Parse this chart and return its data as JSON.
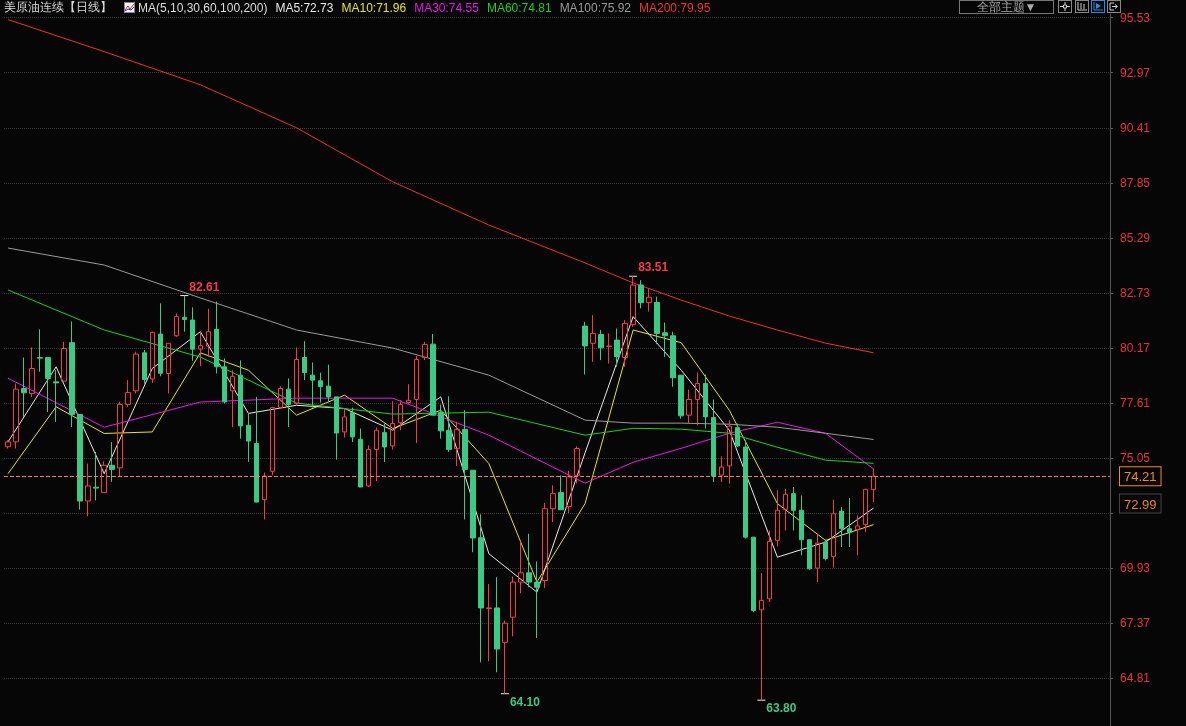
{
  "chart_data": {
    "type": "candlestick",
    "title": "美原油连续【日线】",
    "legend_title": "MA(5,10,30,60,100,200)",
    "categories": [
      null,
      null,
      null,
      null,
      null,
      null,
      null,
      null,
      null,
      null,
      null,
      null,
      null,
      null,
      null,
      null,
      null,
      null,
      null,
      null,
      null,
      null,
      null,
      null,
      null,
      null,
      null,
      null,
      null,
      null,
      null,
      null,
      null,
      null,
      null,
      null,
      null,
      null,
      null,
      null,
      null,
      null,
      null,
      null,
      null,
      null,
      null,
      null,
      null,
      null,
      null,
      null,
      null,
      null,
      null,
      null,
      null,
      null,
      null,
      null,
      null,
      null,
      null,
      null,
      null,
      null,
      null,
      null,
      null,
      null,
      null,
      null,
      null,
      null,
      null,
      null,
      null,
      null,
      null,
      null,
      null,
      null,
      null,
      null,
      null,
      null,
      null,
      null,
      null,
      null,
      null,
      null,
      null,
      null,
      null,
      null,
      null,
      null,
      null,
      null,
      null,
      null,
      null,
      null,
      null,
      null,
      null,
      null,
      null,
      null,
      null,
      null,
      null,
      null,
      null,
      null,
      null,
      null,
      null,
      null,
      null,
      null,
      null,
      null,
      null,
      null,
      null,
      null,
      null,
      null,
      null,
      null,
      null,
      null,
      null,
      null,
      null,
      null
    ],
    "ohlc": [
      [
        75.58,
        75.89,
        75.5,
        75.81
      ],
      [
        75.81,
        78.52,
        75.5,
        78.26
      ],
      [
        78.29,
        79.73,
        76.97,
        78.09
      ],
      [
        78.06,
        80.2,
        77.9,
        79.22
      ],
      [
        79.73,
        81.04,
        79.07,
        79.7
      ],
      [
        79.73,
        79.73,
        77.2,
        78.76
      ],
      [
        78.6,
        79.14,
        76.74,
        78.55
      ],
      [
        78.63,
        80.46,
        78.6,
        80.15
      ],
      [
        80.42,
        81.4,
        76.5,
        77.08
      ],
      [
        77.08,
        77.08,
        72.66,
        73.06
      ],
      [
        73.06,
        74.8,
        72.35,
        73.76
      ],
      [
        73.7,
        75.34,
        73.09,
        73.66
      ],
      [
        73.45,
        74.9,
        73.45,
        74.72
      ],
      [
        74.72,
        75.8,
        73.95,
        74.53
      ],
      [
        74.6,
        77.67,
        74.21,
        77.55
      ],
      [
        77.55,
        78.68,
        77.44,
        78.1
      ],
      [
        78.18,
        80.0,
        78.06,
        79.89
      ],
      [
        79.95,
        80.08,
        78.52,
        78.71
      ],
      [
        78.73,
        80.93,
        78.55,
        80.9
      ],
      [
        80.82,
        82.25,
        78.86,
        79.0
      ],
      [
        78.99,
        80.39,
        78.06,
        80.39
      ],
      [
        80.74,
        81.78,
        80.7,
        81.63
      ],
      [
        81.6,
        82.61,
        80.93,
        81.5
      ],
      [
        81.47,
        82.06,
        79.58,
        80.12
      ],
      [
        80.12,
        80.93,
        79.33,
        80.28
      ],
      [
        80.26,
        82.0,
        79.77,
        80.93
      ],
      [
        81.04,
        82.33,
        78.99,
        79.3
      ],
      [
        79.3,
        79.69,
        77.6,
        77.67
      ],
      [
        78.18,
        79.14,
        76.5,
        78.86
      ],
      [
        78.91,
        79.6,
        75.96,
        76.55
      ],
      [
        76.58,
        77.13,
        74.88,
        75.85
      ],
      [
        75.73,
        77.9,
        73.0,
        73.01
      ],
      [
        73.12,
        74.38,
        72.2,
        74.22
      ],
      [
        74.44,
        77.44,
        74.26,
        77.4
      ],
      [
        77.4,
        78.4,
        77.33,
        78.29
      ],
      [
        78.26,
        78.76,
        76.5,
        77.55
      ],
      [
        77.6,
        80.2,
        77.5,
        79.64
      ],
      [
        79.73,
        80.49,
        78.68,
        79.03
      ],
      [
        78.91,
        79.5,
        77.4,
        78.68
      ],
      [
        78.65,
        79.03,
        77.64,
        78.37
      ],
      [
        78.4,
        79.4,
        77.67,
        77.9
      ],
      [
        77.9,
        77.9,
        74.98,
        76.22
      ],
      [
        76.27,
        77.36,
        76.01,
        76.97
      ],
      [
        77.17,
        77.4,
        75.8,
        76.04
      ],
      [
        75.93,
        76.43,
        73.71,
        73.71
      ],
      [
        73.76,
        75.65,
        73.71,
        75.45
      ],
      [
        75.45,
        76.47,
        73.99,
        76.35
      ],
      [
        76.24,
        76.66,
        74.87,
        75.57
      ],
      [
        75.62,
        77.7,
        75.45,
        76.66
      ],
      [
        76.7,
        77.74,
        76.35,
        77.54
      ],
      [
        77.64,
        78.49,
        77.59,
        77.74
      ],
      [
        77.78,
        79.8,
        75.76,
        79.64
      ],
      [
        79.73,
        80.46,
        79.61,
        80.34
      ],
      [
        80.35,
        80.82,
        77.05,
        77.05
      ],
      [
        77.17,
        77.54,
        75.96,
        76.32
      ],
      [
        76.35,
        77.93,
        75.34,
        75.46
      ],
      [
        75.49,
        76.74,
        74.69,
        76.39
      ],
      [
        76.39,
        77.28,
        72.2,
        74.53
      ],
      [
        74.49,
        74.49,
        70.68,
        71.34
      ],
      [
        71.35,
        72.44,
        65.56,
        68.09
      ],
      [
        68.06,
        69.2,
        65.61,
        68.09
      ],
      [
        68.09,
        69.52,
        65.1,
        66.18
      ],
      [
        66.49,
        67.5,
        64.1,
        67.38
      ],
      [
        67.66,
        69.55,
        66.77,
        69.29
      ],
      [
        69.29,
        71.18,
        68.77,
        69.72
      ],
      [
        69.72,
        71.54,
        69.05,
        69.29
      ],
      [
        69.29,
        70.25,
        66.69,
        69.05
      ],
      [
        69.36,
        72.97,
        69.02,
        72.7
      ],
      [
        72.7,
        73.79,
        72.08,
        73.4
      ],
      [
        73.45,
        74.25,
        72.65,
        72.65
      ],
      [
        72.81,
        74.46,
        72.5,
        74.18
      ],
      [
        74.25,
        75.6,
        73.87,
        75.5
      ],
      [
        81.19,
        81.39,
        78.94,
        80.27
      ],
      [
        80.39,
        81.7,
        79.53,
        80.85
      ],
      [
        80.8,
        81.01,
        79.61,
        80.18
      ],
      [
        80.25,
        80.85,
        79.45,
        80.26
      ],
      [
        80.54,
        81.08,
        79.3,
        79.77
      ],
      [
        79.73,
        81.47,
        79.3,
        81.32
      ],
      [
        81.27,
        83.51,
        81.16,
        83.1
      ],
      [
        83.1,
        83.33,
        82.02,
        82.28
      ],
      [
        82.29,
        82.95,
        81.86,
        82.53
      ],
      [
        82.29,
        82.56,
        80.35,
        80.85
      ],
      [
        80.88,
        81.36,
        79.76,
        80.74
      ],
      [
        80.74,
        80.93,
        78.37,
        78.79
      ],
      [
        78.91,
        78.91,
        76.89,
        77.02
      ],
      [
        77.05,
        78.24,
        76.66,
        77.78
      ],
      [
        77.78,
        79.04,
        76.58,
        78.52
      ],
      [
        78.52,
        78.94,
        76.43,
        76.97
      ],
      [
        76.94,
        77.78,
        73.94,
        74.22
      ],
      [
        74.26,
        75.14,
        73.95,
        74.64
      ],
      [
        74.69,
        76.82,
        73.87,
        76.54
      ],
      [
        76.47,
        76.66,
        75.57,
        75.62
      ],
      [
        75.57,
        75.88,
        71.31,
        71.38
      ],
      [
        71.38,
        71.38,
        67.89,
        67.97
      ],
      [
        68.0,
        69.71,
        63.8,
        68.44
      ],
      [
        68.51,
        71.69,
        68.36,
        71.18
      ],
      [
        71.23,
        73.56,
        70.95,
        72.63
      ],
      [
        72.67,
        73.63,
        71.69,
        73.37
      ],
      [
        73.4,
        73.71,
        71.69,
        72.63
      ],
      [
        72.63,
        73.32,
        70.53,
        71.26
      ],
      [
        71.26,
        71.26,
        69.86,
        69.91
      ],
      [
        69.94,
        71.54,
        69.29,
        71.1
      ],
      [
        71.15,
        71.26,
        70.3,
        70.38
      ],
      [
        70.48,
        73.12,
        69.96,
        72.47
      ],
      [
        72.59,
        72.78,
        70.92,
        71.77
      ],
      [
        71.77,
        73.2,
        70.92,
        71.59
      ],
      [
        71.73,
        72.39,
        70.53,
        71.9
      ],
      [
        71.96,
        73.63,
        71.62,
        73.6
      ],
      [
        73.59,
        74.57,
        73.01,
        74.21
      ],
      null,
      null,
      null,
      null,
      null,
      null,
      null,
      null,
      null,
      null,
      null,
      null,
      null,
      null,
      null,
      null,
      null,
      null,
      null,
      null,
      null,
      null,
      null,
      null,
      null,
      null,
      null,
      null,
      null
    ],
    "colors": [
      "#f23c4a",
      "#f23c4a",
      "#3cc985",
      "#f23c4a",
      "#3cc985",
      "#3cc985",
      "#3cc985",
      "#f23c4a",
      "#3cc985",
      "#3cc985",
      "#f23c4a",
      "#3cc985",
      "#f23c4a",
      "#3cc985",
      "#f23c4a",
      "#f23c4a",
      "#f23c4a",
      "#3cc985",
      "#f23c4a",
      "#3cc985",
      "#f23c4a",
      "#f23c4a",
      "#3cc985",
      "#3cc985",
      "#f23c4a",
      "#f23c4a",
      "#3cc985",
      "#3cc985",
      "#f23c4a",
      "#3cc985",
      "#3cc985",
      "#3cc985",
      "#f23c4a",
      "#f23c4a",
      "#f23c4a",
      "#3cc985",
      "#f23c4a",
      "#3cc985",
      "#3cc985",
      "#3cc985",
      "#3cc985",
      "#3cc985",
      "#f23c4a",
      "#3cc985",
      "#3cc985",
      "#f23c4a",
      "#f23c4a",
      "#3cc985",
      "#f23c4a",
      "#f23c4a",
      "#f23c4a",
      "#f23c4a",
      "#f23c4a",
      "#3cc985",
      "#3cc985",
      "#3cc985",
      "#f23c4a",
      "#3cc985",
      "#3cc985",
      "#3cc985",
      "#f23c4a",
      "#3cc985",
      "#f23c4a",
      "#f23c4a",
      "#f23c4a",
      "#3cc985",
      "#3cc985",
      "#f23c4a",
      "#f23c4a",
      "#3cc985",
      "#f23c4a",
      "#f23c4a",
      "#3cc985",
      "#f23c4a",
      "#3cc985",
      "#f23c4a",
      "#3cc985",
      "#f23c4a",
      "#f23c4a",
      "#3cc985",
      "#f23c4a",
      "#3cc985",
      "#3cc985",
      "#3cc985",
      "#3cc985",
      "#f23c4a",
      "#f23c4a",
      "#3cc985",
      "#3cc985",
      "#f23c4a",
      "#f23c4a",
      "#3cc985",
      "#3cc985",
      "#3cc985",
      "#f23c4a",
      "#f23c4a",
      "#f23c4a",
      "#f23c4a",
      "#3cc985",
      "#3cc985",
      "#3cc985",
      "#f23c4a",
      "#3cc985",
      "#f23c4a",
      "#3cc985",
      "#3cc985",
      "#f23c4a",
      "#f23c4a",
      "#f23c4a",
      null,
      null,
      null,
      null,
      null,
      null,
      null,
      null,
      null,
      null,
      null,
      null,
      null,
      null,
      null,
      null,
      null,
      null,
      null,
      null,
      null,
      null,
      null,
      null,
      null,
      null,
      null,
      null,
      null
    ],
    "series": [
      {
        "name": "MA5:72.73",
        "type": "line",
        "color": "#e8e8e8",
        "values": [
          75.81,
          null,
          null,
          null,
          null,
          null,
          79.3,
          null,
          null,
          null,
          null,
          null,
          74.33,
          null,
          null,
          null,
          null,
          null,
          79.22,
          null,
          null,
          null,
          null,
          null,
          80.93,
          null,
          null,
          null,
          null,
          null,
          77.13,
          null,
          null,
          null,
          null,
          null,
          77.51,
          null,
          null,
          null,
          null,
          null,
          77.36,
          null,
          null,
          null,
          null,
          null,
          76.35,
          null,
          null,
          null,
          null,
          null,
          77.9,
          null,
          null,
          null,
          null,
          null,
          70.61,
          null,
          null,
          null,
          null,
          null,
          68.82,
          null,
          null,
          null,
          null,
          null,
          75.3,
          null,
          null,
          null,
          null,
          null,
          81.63,
          null,
          null,
          null,
          null,
          null,
          79.14,
          null,
          null,
          null,
          null,
          null,
          76.35,
          null,
          null,
          null,
          null,
          null,
          70.45,
          null,
          null,
          null,
          null,
          null,
          71.15,
          null,
          null,
          null,
          null,
          null,
          72.73,
          null,
          null,
          null,
          null,
          null,
          null,
          null,
          null,
          null,
          null,
          null,
          null,
          null,
          null,
          null,
          null,
          null,
          null,
          null,
          null,
          null,
          null,
          null,
          null,
          null,
          null,
          null,
          null,
          null
        ]
      },
      {
        "name": "MA10:71.96",
        "type": "line",
        "color": "#e6e619",
        "values": [
          74.33,
          null,
          null,
          null,
          null,
          null,
          77.44,
          null,
          null,
          null,
          null,
          null,
          76.2,
          null,
          null,
          null,
          null,
          null,
          76.27,
          null,
          null,
          null,
          null,
          null,
          79.95,
          null,
          null,
          null,
          null,
          null,
          79.14,
          null,
          null,
          null,
          null,
          null,
          77.05,
          null,
          null,
          null,
          null,
          null,
          77.98,
          null,
          null,
          null,
          null,
          null,
          76.43,
          null,
          null,
          null,
          null,
          null,
          77.28,
          null,
          null,
          null,
          null,
          null,
          74.8,
          null,
          null,
          null,
          null,
          null,
          69.29,
          null,
          null,
          null,
          null,
          null,
          72.94,
          null,
          null,
          null,
          null,
          null,
          81.01,
          null,
          null,
          null,
          null,
          null,
          80.42,
          null,
          null,
          null,
          null,
          null,
          77.28,
          null,
          null,
          null,
          null,
          null,
          72.94,
          null,
          null,
          null,
          null,
          null,
          71.23,
          null,
          null,
          null,
          null,
          null,
          71.96,
          null,
          null,
          null,
          null,
          null,
          null,
          null,
          null,
          null,
          null,
          null,
          null,
          null,
          null,
          null,
          null,
          null,
          null,
          null,
          null,
          null,
          null,
          null,
          null,
          null,
          null,
          null,
          null,
          null
        ]
      },
      {
        "name": "MA30:74.55",
        "type": "line",
        "color": "#e619e6",
        "values": [
          78.77,
          null,
          null,
          null,
          null,
          null,
          null,
          null,
          null,
          null,
          null,
          null,
          76.49,
          null,
          null,
          null,
          null,
          null,
          null,
          null,
          null,
          null,
          null,
          null,
          77.66,
          null,
          null,
          null,
          null,
          null,
          null,
          null,
          null,
          null,
          null,
          null,
          77.84,
          null,
          null,
          null,
          null,
          null,
          null,
          null,
          null,
          null,
          null,
          null,
          77.84,
          null,
          null,
          null,
          null,
          null,
          null,
          null,
          null,
          null,
          null,
          null,
          76.12,
          null,
          null,
          null,
          null,
          null,
          null,
          null,
          null,
          null,
          null,
          null,
          73.89,
          null,
          null,
          null,
          null,
          null,
          74.86,
          null,
          null,
          null,
          null,
          null,
          75.51,
          null,
          null,
          null,
          null,
          null,
          76.21,
          null,
          null,
          null,
          null,
          null,
          76.72,
          null,
          null,
          null,
          null,
          null,
          76.21,
          null,
          null,
          null,
          null,
          null,
          74.55,
          null,
          null,
          null,
          null,
          null,
          null,
          null,
          null,
          null,
          null,
          null,
          null,
          null,
          null,
          null,
          null,
          null,
          null,
          null,
          null,
          null,
          null,
          null,
          null,
          null,
          null,
          null,
          null,
          null
        ]
      },
      {
        "name": "MA60:74.81",
        "type": "line",
        "color": "#19d219",
        "values": [
          82.87,
          null,
          null,
          null,
          null,
          null,
          null,
          null,
          null,
          null,
          null,
          null,
          81.01,
          null,
          null,
          null,
          null,
          null,
          null,
          null,
          null,
          null,
          null,
          null,
          79.75,
          null,
          null,
          null,
          null,
          null,
          null,
          null,
          null,
          null,
          null,
          null,
          77.61,
          null,
          null,
          null,
          null,
          null,
          null,
          null,
          null,
          null,
          null,
          null,
          77.1,
          null,
          null,
          null,
          null,
          null,
          null,
          null,
          null,
          null,
          null,
          null,
          77.19,
          null,
          null,
          null,
          null,
          null,
          null,
          null,
          null,
          null,
          null,
          null,
          76.12,
          null,
          null,
          null,
          null,
          null,
          76.44,
          null,
          null,
          null,
          null,
          null,
          76.4,
          null,
          null,
          null,
          null,
          null,
          76.21,
          null,
          null,
          null,
          null,
          null,
          75.56,
          null,
          null,
          null,
          null,
          null,
          74.96,
          null,
          null,
          null,
          null,
          null,
          74.81,
          null,
          null,
          null,
          null,
          null,
          null,
          null,
          null,
          null,
          null,
          null,
          null,
          null,
          null,
          null,
          null,
          null,
          null,
          null,
          null,
          null,
          null,
          null,
          null,
          null,
          null,
          null,
          null,
          null
        ]
      },
      {
        "name": "MA100:75.92",
        "type": "line",
        "color": "#9a9a9a",
        "values": [
          84.82,
          null,
          null,
          null,
          null,
          null,
          null,
          null,
          null,
          null,
          null,
          null,
          84.03,
          null,
          null,
          null,
          null,
          null,
          null,
          null,
          null,
          null,
          null,
          null,
          82.5,
          null,
          null,
          null,
          null,
          null,
          null,
          null,
          null,
          null,
          null,
          null,
          81.01,
          null,
          null,
          null,
          null,
          null,
          null,
          null,
          null,
          null,
          null,
          null,
          80.17,
          null,
          null,
          null,
          null,
          null,
          null,
          null,
          null,
          null,
          null,
          null,
          78.91,
          null,
          null,
          null,
          null,
          null,
          null,
          null,
          null,
          null,
          null,
          null,
          76.82,
          null,
          null,
          null,
          null,
          null,
          76.68,
          null,
          null,
          null,
          null,
          null,
          76.68,
          null,
          null,
          null,
          null,
          null,
          76.63,
          null,
          null,
          null,
          null,
          null,
          76.49,
          null,
          null,
          null,
          null,
          null,
          76.21,
          null,
          null,
          null,
          null,
          null,
          75.92,
          null,
          null,
          null,
          null,
          null,
          null,
          null,
          null,
          null,
          null,
          null,
          null,
          null,
          null,
          null,
          null,
          null,
          null,
          null,
          null,
          null,
          null,
          null,
          null,
          null,
          null,
          null,
          null,
          null
        ]
      },
      {
        "name": "MA200:79.95",
        "type": "line",
        "color": "#f03030",
        "values": [
          95.44,
          null,
          null,
          null,
          null,
          null,
          null,
          null,
          null,
          null,
          null,
          null,
          93.95,
          null,
          null,
          null,
          null,
          null,
          null,
          null,
          null,
          null,
          null,
          null,
          92.41,
          null,
          null,
          null,
          null,
          null,
          null,
          null,
          null,
          null,
          null,
          null,
          90.41,
          null,
          null,
          null,
          null,
          null,
          null,
          null,
          null,
          null,
          null,
          null,
          87.9,
          null,
          null,
          null,
          null,
          null,
          null,
          null,
          null,
          null,
          null,
          null,
          85.89,
          null,
          null,
          null,
          null,
          null,
          null,
          null,
          null,
          null,
          null,
          null,
          84.13,
          null,
          null,
          null,
          null,
          null,
          83.2,
          null,
          null,
          null,
          null,
          null,
          82.4,
          null,
          null,
          null,
          null,
          null,
          81.66,
          null,
          null,
          null,
          null,
          null,
          81.01,
          null,
          null,
          null,
          null,
          null,
          80.4,
          null,
          null,
          null,
          null,
          null,
          79.95,
          null,
          null,
          null,
          null,
          null,
          null,
          null,
          null,
          null,
          null,
          null,
          null,
          null,
          null,
          null,
          null,
          null,
          null,
          null,
          null,
          null,
          null,
          null,
          null,
          null,
          null,
          null,
          null,
          null
        ]
      }
    ],
    "ylim": [
      62.6,
      95.7
    ],
    "yticks": [
      95.53,
      92.97,
      90.41,
      87.85,
      85.29,
      82.73,
      80.17,
      77.61,
      75.05,
      {
        "value": 72.49,
        "label": null
      },
      69.93,
      67.37,
      64.81
    ],
    "tick_labels": "y",
    "grid": "y",
    "legend": "top",
    "marker": "none",
    "ref_lines": [
      {
        "axis": "y",
        "value": 74.21,
        "label": "74.21",
        "color": "#f08c1e",
        "line_style": "dashed"
      }
    ],
    "annotations": [
      "82.61",
      "83.51",
      "64.10",
      "63.80",
      "72.99",
      "全部主题▼"
    ]
  }
}
